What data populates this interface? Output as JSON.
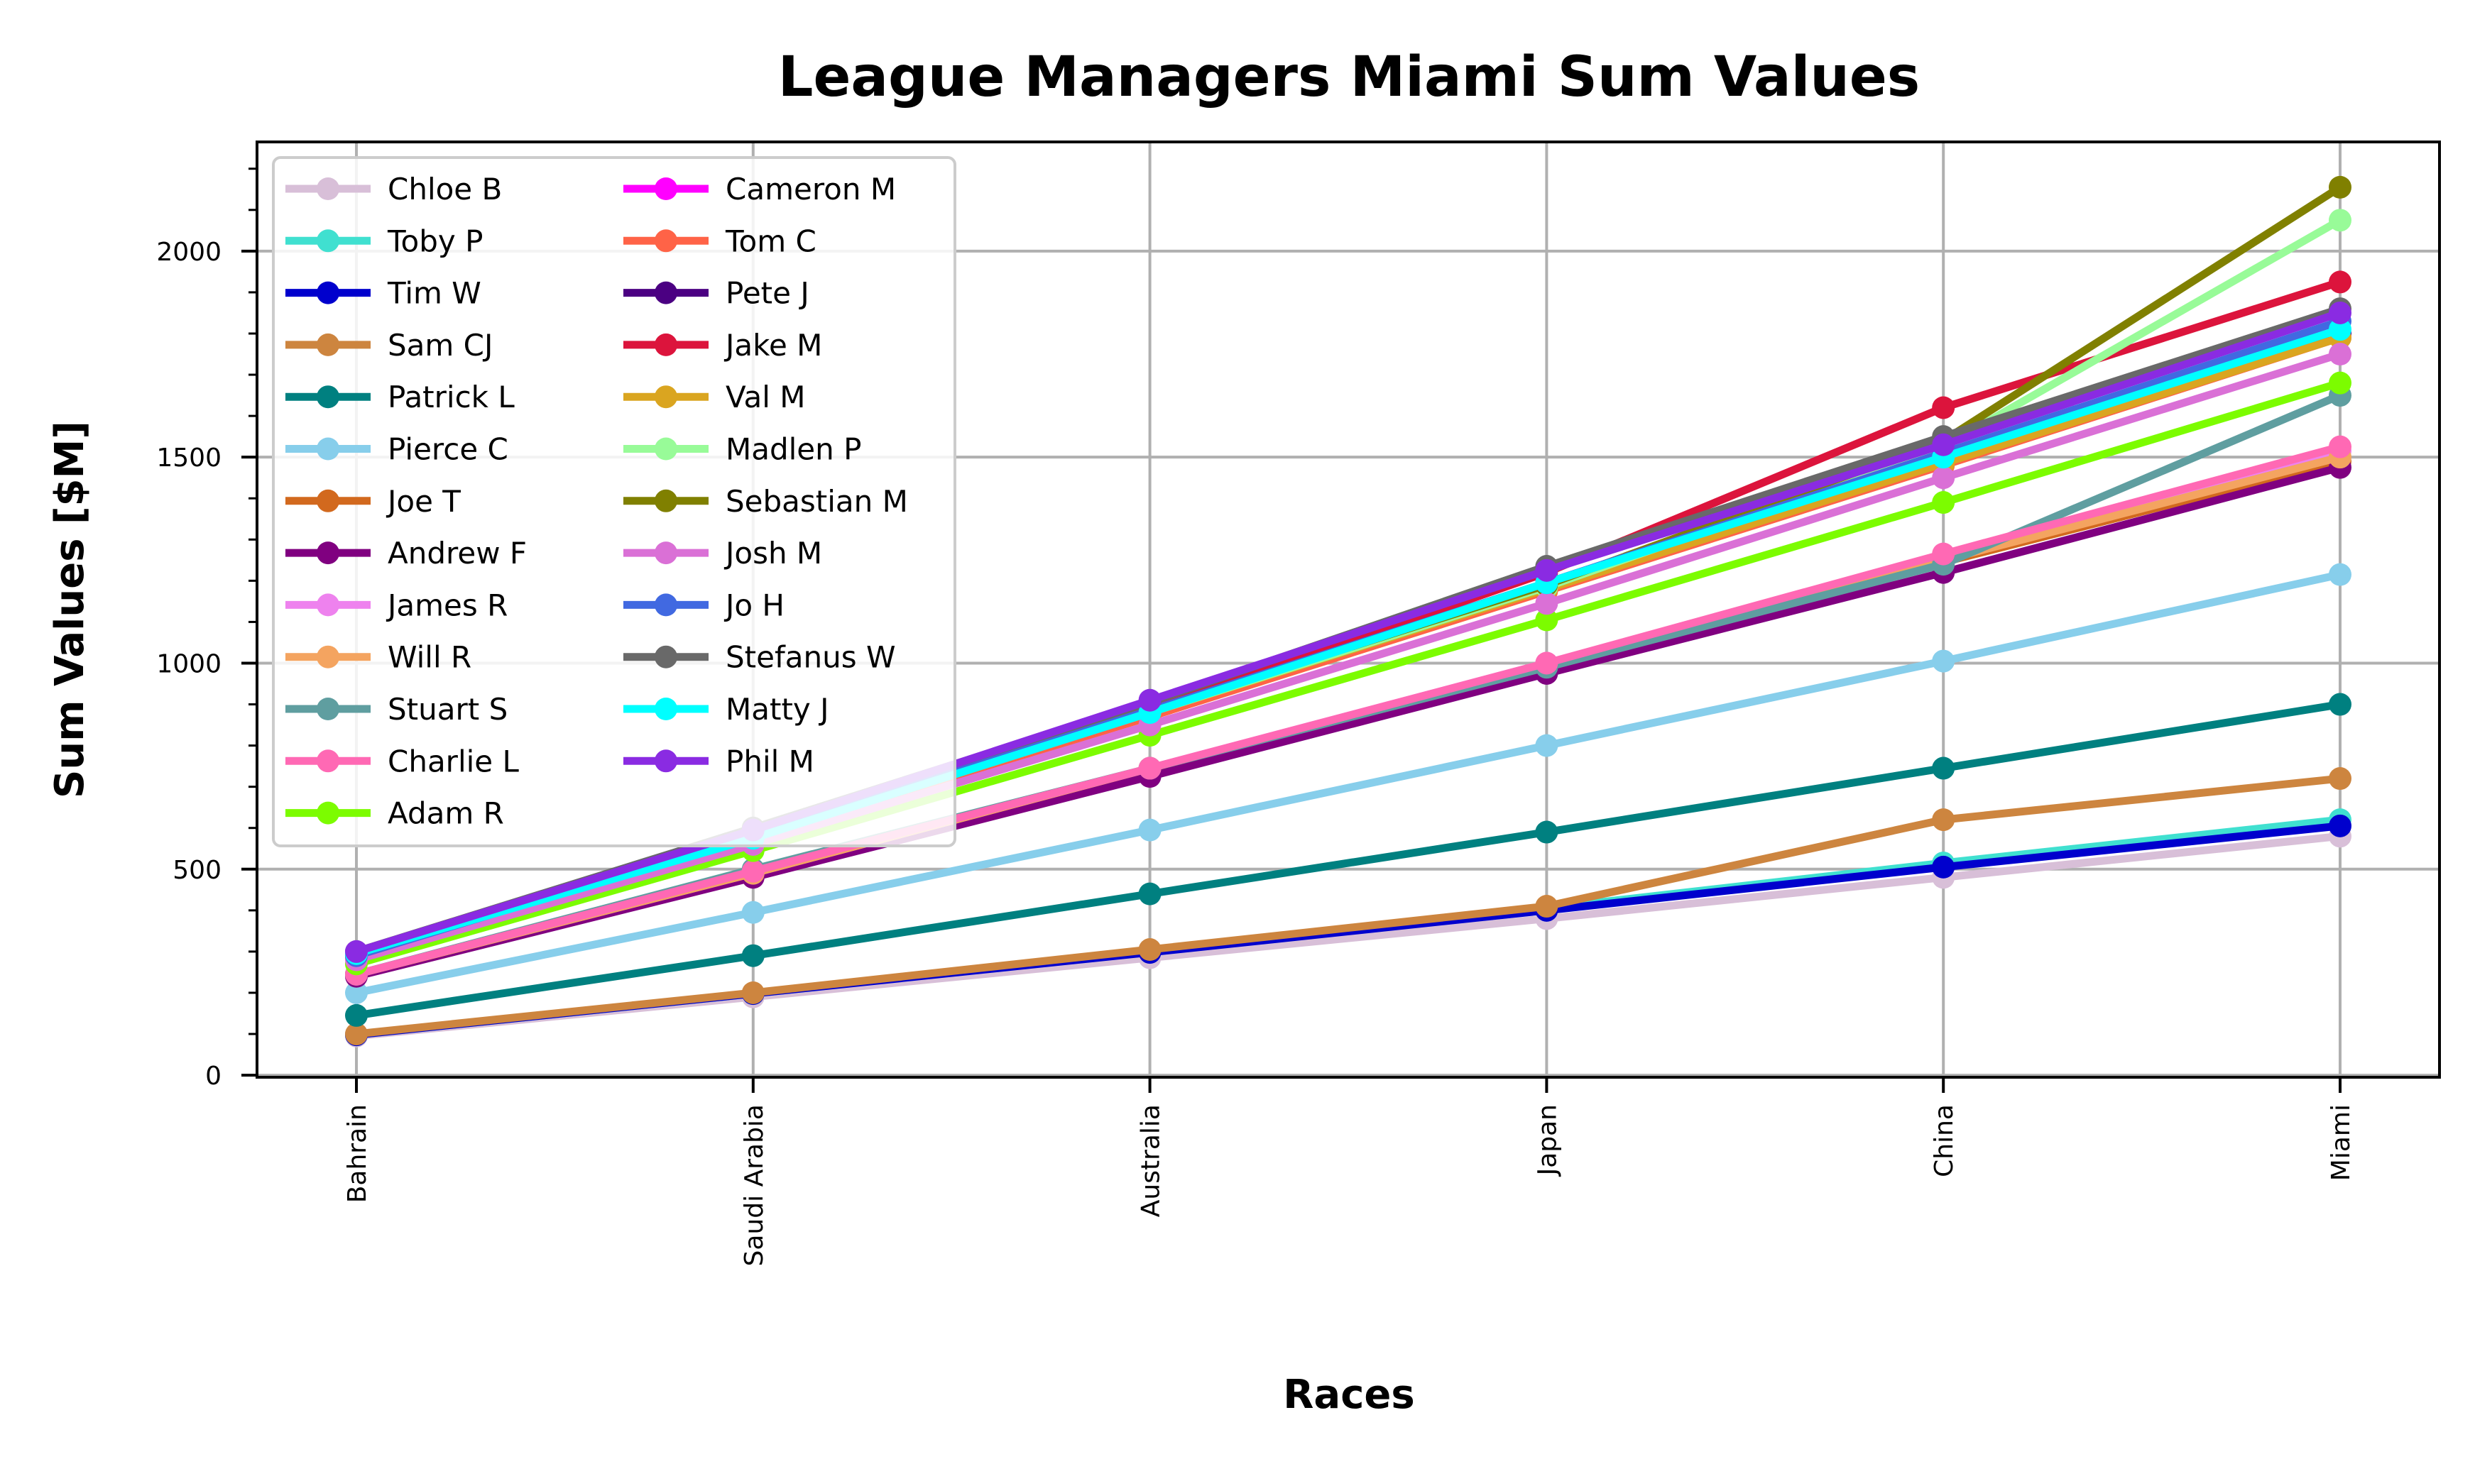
{
  "chart_data": {
    "type": "line",
    "title": "League Managers Miami Sum Values",
    "xlabel": "Races",
    "ylabel": "Sum Values [$M]",
    "categories": [
      "Bahrain",
      "Saudi Arabia",
      "Australia",
      "Japan",
      "China",
      "Miami"
    ],
    "ylim": [
      -5,
      2265
    ],
    "yticks": [
      0,
      500,
      1000,
      1500,
      2000
    ],
    "grid": true,
    "legend_position": "top-left",
    "series": [
      {
        "name": "Chloe B",
        "color": "#d8bfd8",
        "values": [
          95,
          190,
          285,
          380,
          480,
          580
        ]
      },
      {
        "name": "Toby P",
        "color": "#40e0d0",
        "values": [
          98,
          198,
          300,
          405,
          515,
          620
        ]
      },
      {
        "name": "Tim W",
        "color": "#0000cd",
        "values": [
          98,
          198,
          298,
          400,
          505,
          605
        ]
      },
      {
        "name": "Sam CJ",
        "color": "#cd853f",
        "values": [
          100,
          200,
          305,
          410,
          620,
          720
        ]
      },
      {
        "name": "Patrick L",
        "color": "#008080",
        "values": [
          145,
          290,
          440,
          590,
          745,
          900
        ]
      },
      {
        "name": "Pierce C",
        "color": "#87ceeb",
        "values": [
          200,
          395,
          595,
          800,
          1005,
          1215
        ]
      },
      {
        "name": "Joe T",
        "color": "#d2691e",
        "values": [
          245,
          490,
          740,
          990,
          1245,
          1490
        ]
      },
      {
        "name": "Andrew F",
        "color": "#800080",
        "values": [
          240,
          480,
          725,
          975,
          1220,
          1475
        ]
      },
      {
        "name": "James R",
        "color": "#ee82ee",
        "values": [
          245,
          490,
          745,
          1000,
          1255,
          1515
        ]
      },
      {
        "name": "Will R",
        "color": "#f4a460",
        "values": [
          245,
          490,
          745,
          995,
          1250,
          1500
        ]
      },
      {
        "name": "Stuart S",
        "color": "#5f9ea0",
        "values": [
          245,
          500,
          745,
          990,
          1240,
          1650
        ]
      },
      {
        "name": "Charlie L",
        "color": "#ff69b4",
        "values": [
          245,
          495,
          745,
          1000,
          1265,
          1525
        ]
      },
      {
        "name": "Adam R",
        "color": "#7cfc00",
        "values": [
          270,
          545,
          825,
          1105,
          1390,
          1680
        ]
      },
      {
        "name": "Cameron M",
        "color": "#ff00ff",
        "values": [
          290,
          580,
          880,
          1180,
          1490,
          1800
        ]
      },
      {
        "name": "Tom C",
        "color": "#ff6347",
        "values": [
          285,
          575,
          870,
          1175,
          1480,
          1790
        ]
      },
      {
        "name": "Pete J",
        "color": "#4b0082",
        "values": [
          290,
          585,
          880,
          1185,
          1490,
          1800
        ]
      },
      {
        "name": "Jake M",
        "color": "#dc143c",
        "values": [
          290,
          585,
          885,
          1220,
          1620,
          1925
        ]
      },
      {
        "name": "Val M",
        "color": "#daa520",
        "values": [
          290,
          580,
          880,
          1180,
          1485,
          1790
        ]
      },
      {
        "name": "Madlen P",
        "color": "#98fb98",
        "values": [
          290,
          580,
          880,
          1185,
          1525,
          2075
        ]
      },
      {
        "name": "Sebastian M",
        "color": "#808000",
        "values": [
          290,
          585,
          885,
          1190,
          1540,
          2155
        ]
      },
      {
        "name": "Josh M",
        "color": "#da70d6",
        "values": [
          280,
          560,
          850,
          1145,
          1450,
          1750
        ]
      },
      {
        "name": "Jo H",
        "color": "#4169e1",
        "values": [
          290,
          585,
          885,
          1195,
          1510,
          1830
        ]
      },
      {
        "name": "Stefanus W",
        "color": "#696969",
        "values": [
          300,
          600,
          905,
          1235,
          1550,
          1860
        ]
      },
      {
        "name": "Matty J",
        "color": "#00ffff",
        "values": [
          295,
          575,
          880,
          1195,
          1500,
          1810
        ]
      },
      {
        "name": "Phil M",
        "color": "#8a2be2",
        "values": [
          300,
          595,
          910,
          1225,
          1530,
          1850
        ]
      }
    ]
  }
}
